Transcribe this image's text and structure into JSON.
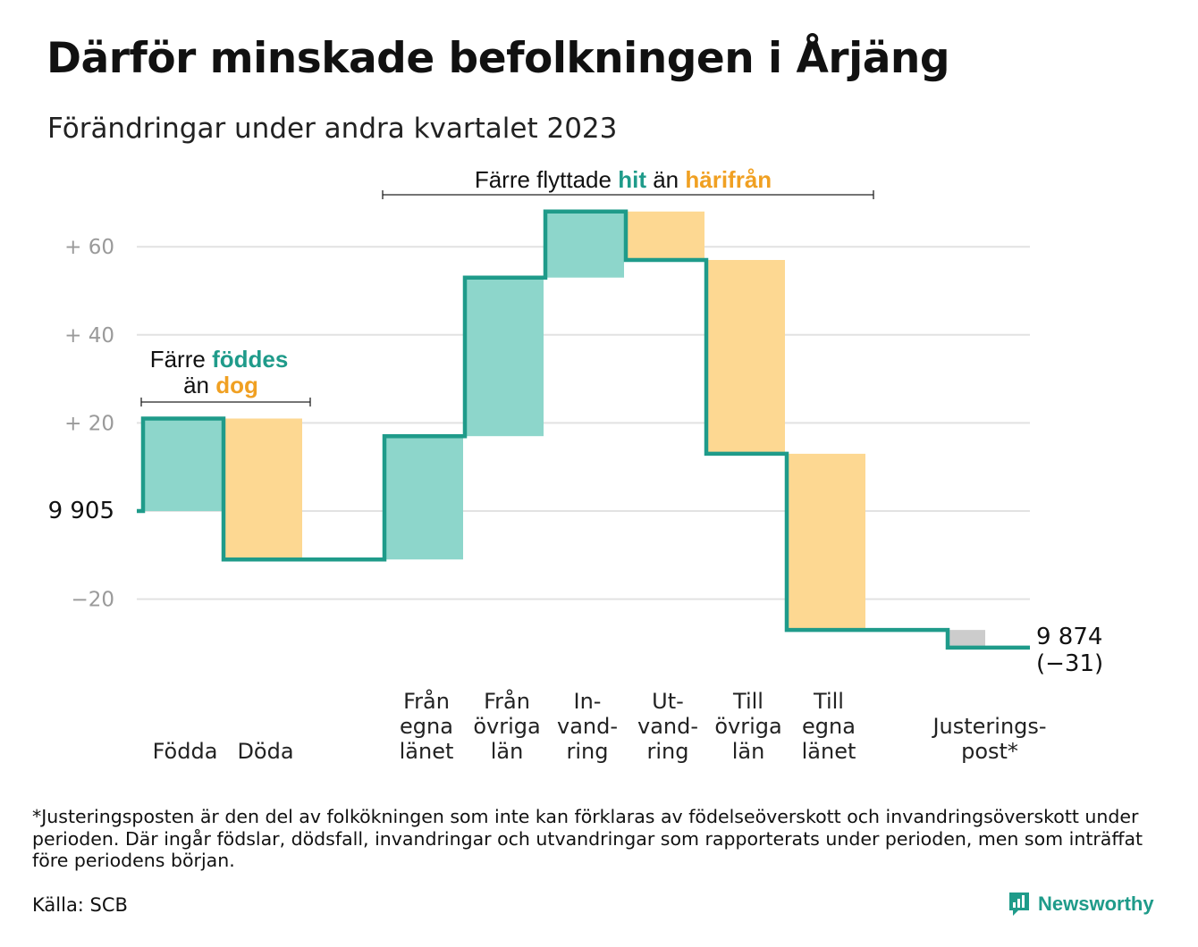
{
  "title": "Därför minskade befolkningen i Årjäng",
  "subtitle": "Förändringar under andra kvartalet 2023",
  "chart_data": {
    "type": "waterfall",
    "start_value": 9905,
    "start_label": "9  905",
    "end_value": 9874,
    "end_label": "9 874",
    "end_change_label": "(−31)",
    "ylim": [
      -35,
      70
    ],
    "yticks": [
      {
        "value": 60,
        "label": "+  60"
      },
      {
        "value": 40,
        "label": "+  40"
      },
      {
        "value": 20,
        "label": "+  20"
      },
      {
        "value": -20,
        "label": "−20"
      }
    ],
    "grid": true,
    "steps": [
      {
        "lines": [
          "Födda"
        ],
        "delta": 21,
        "kind": "inflow"
      },
      {
        "lines": [
          "Döda"
        ],
        "delta": -32,
        "kind": "outflow"
      },
      {
        "lines": [
          "Från",
          "egna",
          "länet"
        ],
        "delta": 28,
        "kind": "inflow"
      },
      {
        "lines": [
          "Från",
          "övriga",
          "län"
        ],
        "delta": 36,
        "kind": "inflow"
      },
      {
        "lines": [
          "In-",
          "vand-",
          "ring"
        ],
        "delta": 15,
        "kind": "inflow"
      },
      {
        "lines": [
          "Ut-",
          "vand-",
          "ring"
        ],
        "delta": -11,
        "kind": "outflow"
      },
      {
        "lines": [
          "Till",
          "övriga",
          "län"
        ],
        "delta": -44,
        "kind": "outflow"
      },
      {
        "lines": [
          "Till",
          "egna",
          "länet"
        ],
        "delta": -40,
        "kind": "outflow"
      },
      {
        "lines": [
          "Justerings-",
          "post*"
        ],
        "delta": -4,
        "kind": "adjustment"
      }
    ],
    "annotations": {
      "births": {
        "pre": "Färre",
        "hl1": "föddes",
        "mid": "än",
        "hl2": "dog"
      },
      "migration": {
        "pre": "Färre flyttade",
        "hl1": "hit",
        "mid": "än",
        "hl2": "härifrån"
      }
    }
  },
  "colors": {
    "line": "#1f9b8a",
    "inflow": "#8dd6cb",
    "outflow": "#fdd892",
    "adjustment": "#cccccc",
    "highlight_teal": "#1f9b8a",
    "highlight_orange": "#f0a022",
    "grid": "#e2e2e2"
  },
  "footnote": "*Justeringsposten är den del av folkökningen som inte kan förklaras av födelseöverskott och invandringsöverskott under perioden. Där ingår födslar, dödsfall, invandringar och utvandringar som rapporterats under perioden, men som inträffat före periodens början.",
  "source": "Källa: SCB",
  "brand": {
    "name": "Newsworthy",
    "icon": "newsworthy-logo-icon"
  }
}
